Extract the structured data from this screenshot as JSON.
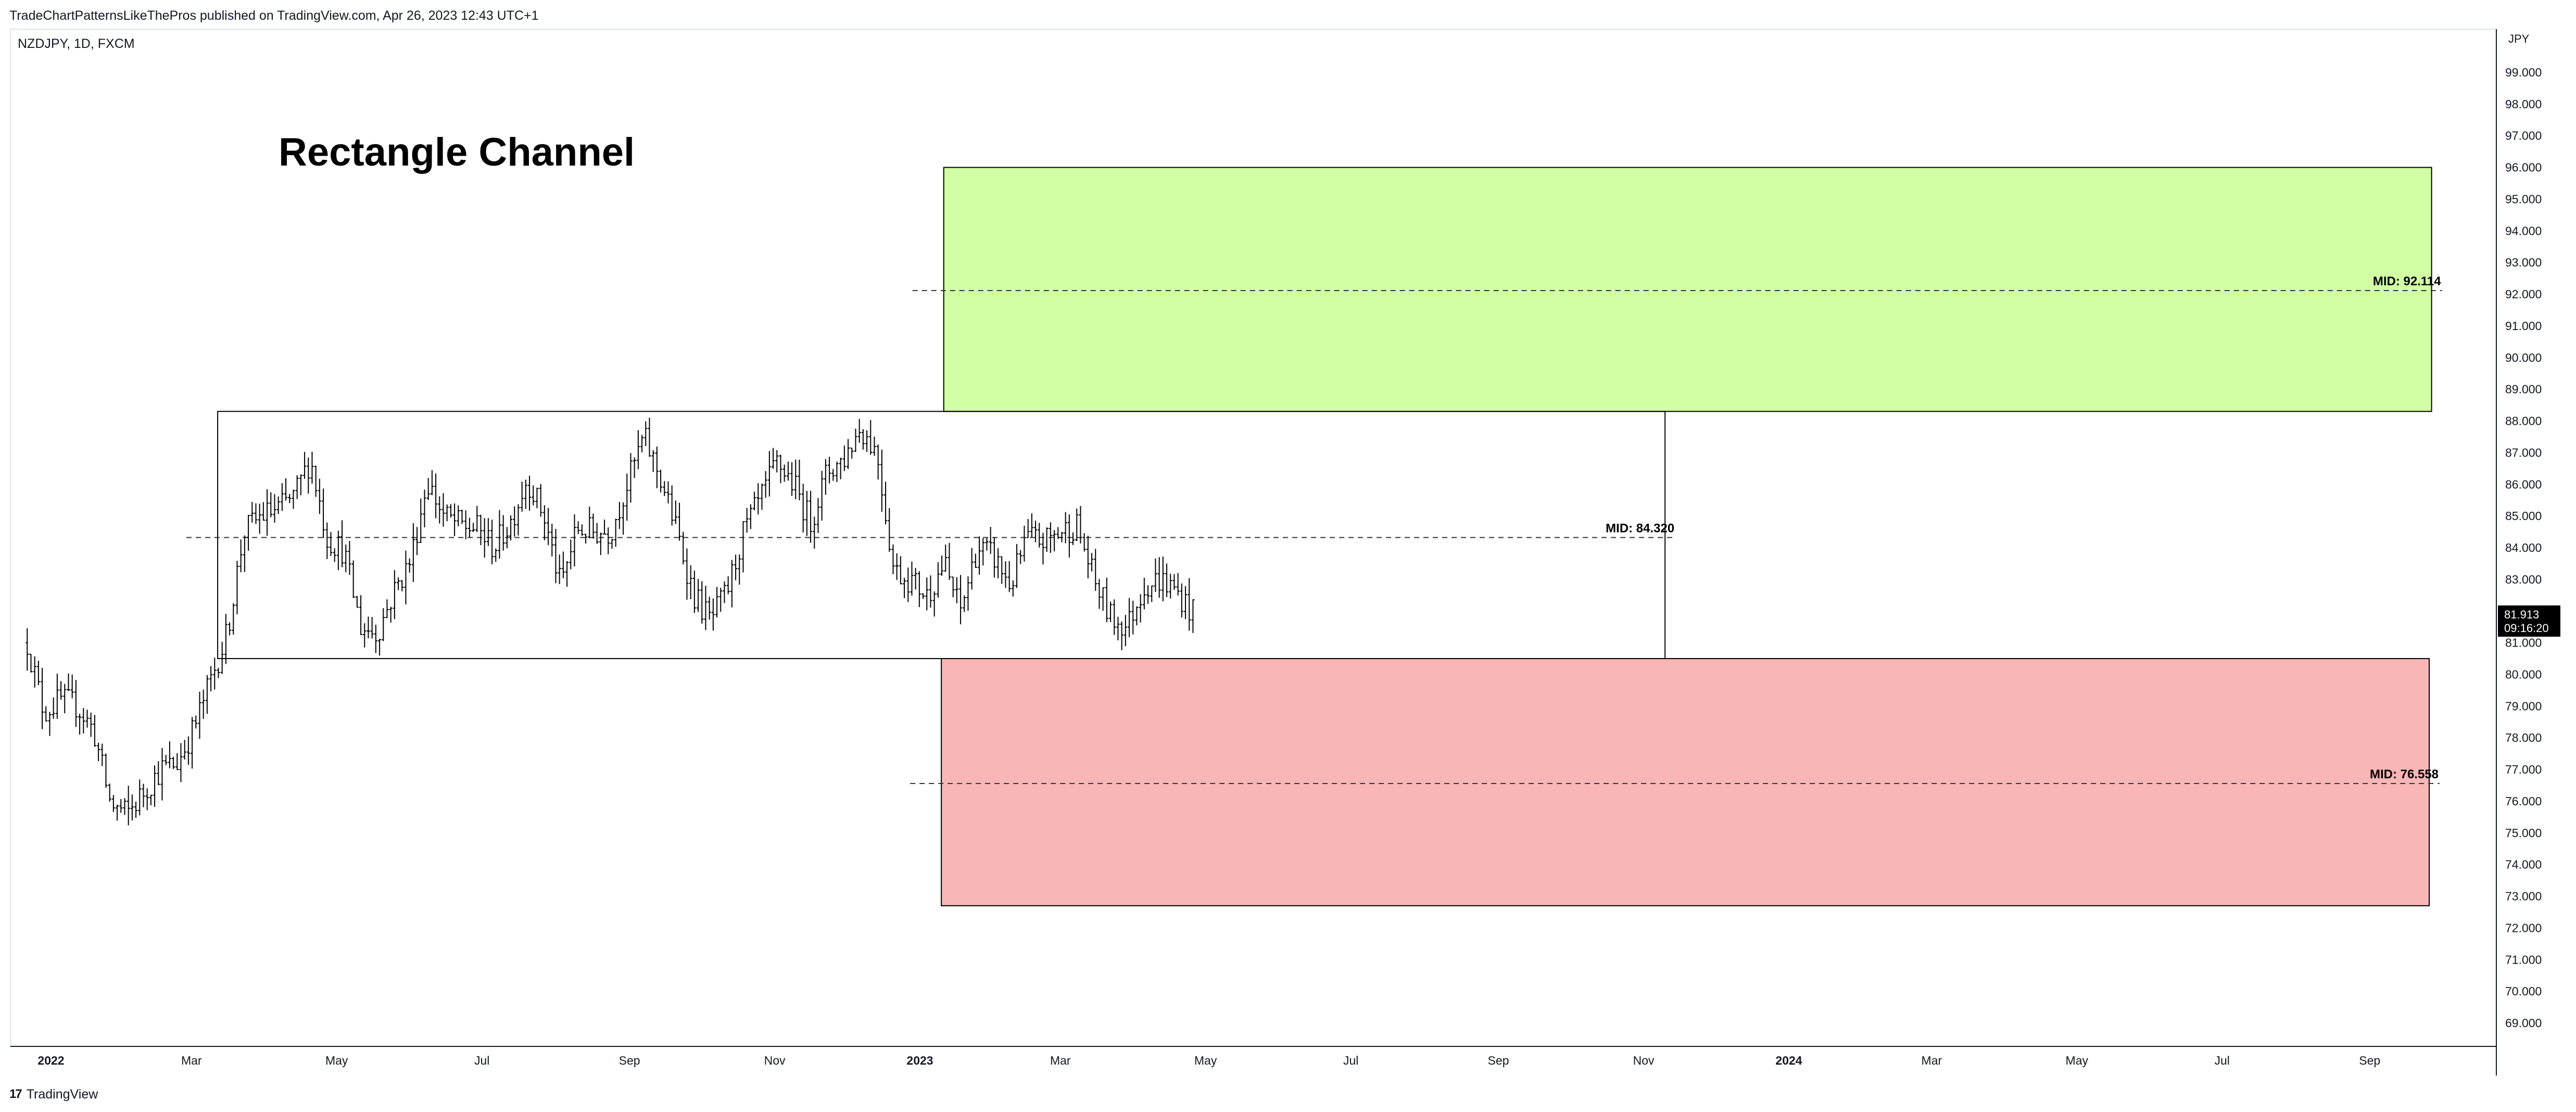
{
  "header": {
    "published": "TradeChartPatternsLikeThePros published on TradingView.com, Apr 26, 2023 12:43 UTC+1"
  },
  "symbol_label": "NZDJPY, 1D, FXCM",
  "footer": {
    "logo": "17",
    "brand": "TradingView"
  },
  "price_badge": {
    "price": "81.913",
    "countdown": "09:16:20"
  },
  "colors": {
    "bars": "#000000",
    "green_zone": "#d2ffa3",
    "red_zone": "#f8b6b6",
    "channel_border": "#000000",
    "badge_bg": "#000000"
  },
  "chart_data": {
    "type": "ohlc",
    "title": "Rectangle Channel",
    "currency": "JPY",
    "ylim": [
      68.0,
      100.0
    ],
    "y_ticks": [
      "99.000",
      "98.000",
      "97.000",
      "96.000",
      "95.000",
      "94.000",
      "93.000",
      "92.000",
      "91.000",
      "90.000",
      "89.000",
      "88.000",
      "87.000",
      "86.000",
      "85.000",
      "84.000",
      "83.000",
      "82.000",
      "81.000",
      "80.000",
      "79.000",
      "78.000",
      "77.000",
      "76.000",
      "75.000",
      "74.000",
      "73.000",
      "72.000",
      "71.000",
      "70.000",
      "69.000"
    ],
    "x_ticks": [
      {
        "label": "2022",
        "date": "2022-01-01",
        "bold": true
      },
      {
        "label": "Mar",
        "date": "2022-03-01",
        "bold": false
      },
      {
        "label": "May",
        "date": "2022-05-01",
        "bold": false
      },
      {
        "label": "Jul",
        "date": "2022-07-01",
        "bold": false
      },
      {
        "label": "Sep",
        "date": "2022-09-01",
        "bold": false
      },
      {
        "label": "Nov",
        "date": "2022-11-01",
        "bold": false
      },
      {
        "label": "2023",
        "date": "2023-01-01",
        "bold": true
      },
      {
        "label": "Mar",
        "date": "2023-03-01",
        "bold": false
      },
      {
        "label": "May",
        "date": "2023-05-01",
        "bold": false
      },
      {
        "label": "Jul",
        "date": "2023-07-01",
        "bold": false
      },
      {
        "label": "Sep",
        "date": "2023-09-01",
        "bold": false
      },
      {
        "label": "Nov",
        "date": "2023-11-01",
        "bold": false
      },
      {
        "label": "2024",
        "date": "2024-01-01",
        "bold": true
      },
      {
        "label": "Mar",
        "date": "2024-03-01",
        "bold": false
      },
      {
        "label": "May",
        "date": "2024-05-01",
        "bold": false
      },
      {
        "label": "Jul",
        "date": "2024-07-01",
        "bold": false
      },
      {
        "label": "Sep",
        "date": "2024-09-01",
        "bold": false
      }
    ],
    "price_path": [
      [
        "2021-12-22",
        81.0
      ],
      [
        "2021-12-29",
        78.8
      ],
      [
        "2022-01-05",
        79.2
      ],
      [
        "2022-01-12",
        79.0
      ],
      [
        "2022-01-19",
        78.2
      ],
      [
        "2022-01-26",
        75.9
      ],
      [
        "2022-02-02",
        75.6
      ],
      [
        "2022-02-09",
        76.3
      ],
      [
        "2022-02-16",
        77.0
      ],
      [
        "2022-02-23",
        77.2
      ],
      [
        "2022-03-02",
        78.3
      ],
      [
        "2022-03-09",
        79.8
      ],
      [
        "2022-03-16",
        81.3
      ],
      [
        "2022-03-23",
        84.5
      ],
      [
        "2022-03-30",
        85.0
      ],
      [
        "2022-04-06",
        85.2
      ],
      [
        "2022-04-13",
        85.6
      ],
      [
        "2022-04-20",
        86.8
      ],
      [
        "2022-04-27",
        84.3
      ],
      [
        "2022-05-04",
        83.9
      ],
      [
        "2022-05-11",
        81.5
      ],
      [
        "2022-05-18",
        81.3
      ],
      [
        "2022-05-25",
        82.6
      ],
      [
        "2022-06-01",
        83.6
      ],
      [
        "2022-06-08",
        86.1
      ],
      [
        "2022-06-15",
        85.0
      ],
      [
        "2022-06-22",
        84.7
      ],
      [
        "2022-06-29",
        84.6
      ],
      [
        "2022-07-06",
        84.0
      ],
      [
        "2022-07-13",
        84.8
      ],
      [
        "2022-07-20",
        86.2
      ],
      [
        "2022-07-27",
        85.0
      ],
      [
        "2022-08-03",
        82.8
      ],
      [
        "2022-08-10",
        84.6
      ],
      [
        "2022-08-17",
        84.5
      ],
      [
        "2022-08-24",
        84.5
      ],
      [
        "2022-08-31",
        86.0
      ],
      [
        "2022-09-07",
        87.5
      ],
      [
        "2022-09-14",
        86.2
      ],
      [
        "2022-09-21",
        84.5
      ],
      [
        "2022-09-28",
        82.5
      ],
      [
        "2022-10-05",
        81.7
      ],
      [
        "2022-10-12",
        82.6
      ],
      [
        "2022-10-19",
        84.5
      ],
      [
        "2022-10-26",
        85.5
      ],
      [
        "2022-11-02",
        86.7
      ],
      [
        "2022-11-09",
        86.0
      ],
      [
        "2022-11-16",
        84.8
      ],
      [
        "2022-11-23",
        86.4
      ],
      [
        "2022-11-30",
        86.8
      ],
      [
        "2022-12-07",
        87.8
      ],
      [
        "2022-12-14",
        87.0
      ],
      [
        "2022-12-21",
        83.3
      ],
      [
        "2022-12-28",
        83.0
      ],
      [
        "2023-01-04",
        82.5
      ],
      [
        "2023-01-11",
        83.5
      ],
      [
        "2023-01-18",
        82.0
      ],
      [
        "2023-01-25",
        84.0
      ],
      [
        "2023-02-01",
        83.7
      ],
      [
        "2023-02-08",
        82.8
      ],
      [
        "2023-02-15",
        84.3
      ],
      [
        "2023-02-22",
        84.2
      ],
      [
        "2023-03-01",
        84.5
      ],
      [
        "2023-03-08",
        84.7
      ],
      [
        "2023-03-15",
        83.0
      ],
      [
        "2023-03-22",
        81.8
      ],
      [
        "2023-03-29",
        81.5
      ],
      [
        "2023-04-05",
        82.8
      ],
      [
        "2023-04-12",
        83.0
      ],
      [
        "2023-04-19",
        82.6
      ],
      [
        "2023-04-26",
        81.9
      ]
    ],
    "zones": [
      {
        "kind": "target-up",
        "from": "2023-01-11",
        "to": "2024-09-27",
        "top": 96.0,
        "bottom": 88.3,
        "mid_label": "MID: 92.114",
        "mid": 92.114
      },
      {
        "kind": "channel",
        "from": "2022-03-12",
        "to": "2023-11-10",
        "top": 88.3,
        "bottom": 80.5,
        "mid_label": "MID: 84.320",
        "mid": 84.32
      },
      {
        "kind": "target-down",
        "from": "2023-01-10",
        "to": "2024-09-26",
        "top": 80.5,
        "bottom": 72.7,
        "mid_label": "MID: 76.558",
        "mid": 76.558
      }
    ],
    "last_price": 81.913
  }
}
